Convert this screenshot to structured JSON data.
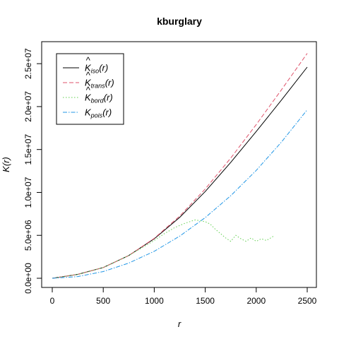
{
  "chart_data": {
    "type": "line",
    "title": "kburglary",
    "xlabel": "r",
    "ylabel": "K(r)",
    "xlim": [
      0,
      2500
    ],
    "ylim": [
      0,
      26000000
    ],
    "x_ticks": [
      0,
      500,
      1000,
      1500,
      2000,
      2500
    ],
    "x_tick_labels": [
      "0",
      "500",
      "1000",
      "1500",
      "2000",
      "2500"
    ],
    "y_ticks": [
      0,
      5000000,
      10000000,
      15000000,
      20000000,
      25000000
    ],
    "y_tick_labels": [
      "0.0e+00",
      "5.0e+06",
      "1.0e+07",
      "1.5e+07",
      "2.0e+07",
      "2.5e+07"
    ],
    "grid": false,
    "legend_position": "top-left",
    "series": [
      {
        "name": "iso",
        "legend_base": "K",
        "legend_sub": "iso",
        "legend_hat": true,
        "color": "#000000",
        "dash": "",
        "x": [
          0,
          250,
          500,
          750,
          1000,
          1250,
          1500,
          1750,
          2000,
          2250,
          2500
        ],
        "y": [
          0,
          450000,
          1250000,
          2650000,
          4600000,
          7100000,
          10100000,
          13500000,
          17100000,
          20800000,
          24600000
        ]
      },
      {
        "name": "trans",
        "legend_base": "K",
        "legend_sub": "trans",
        "legend_hat": true,
        "color": "#df536b",
        "dash": "6,3",
        "x": [
          0,
          250,
          500,
          750,
          1000,
          1250,
          1500,
          1750,
          2000,
          2250,
          2500
        ],
        "y": [
          0,
          450000,
          1250000,
          2650000,
          4650000,
          7250000,
          10400000,
          14000000,
          17900000,
          22000000,
          26200000
        ]
      },
      {
        "name": "bord",
        "legend_base": "K",
        "legend_sub": "bord",
        "legend_hat": true,
        "color": "#61d04f",
        "dash": "1.5,2.5",
        "x": [
          0,
          250,
          500,
          750,
          1000,
          1100,
          1200,
          1300,
          1400,
          1450,
          1500,
          1550,
          1600,
          1650,
          1700,
          1750,
          1800,
          1850,
          1900,
          1950,
          2000,
          2050,
          2100,
          2170
        ],
        "y": [
          0,
          450000,
          1250000,
          2650000,
          4400000,
          5200000,
          5900000,
          6400000,
          6800000,
          6700000,
          6600000,
          6300000,
          5700000,
          5200000,
          4700000,
          4300000,
          5000000,
          4600000,
          4300000,
          4700000,
          4300000,
          4600000,
          4400000,
          4900000
        ]
      },
      {
        "name": "pois",
        "legend_base": "K",
        "legend_sub": "pois",
        "legend_hat": false,
        "color": "#2297e6",
        "dash": "6,2,1.5,2",
        "x": [
          0,
          250,
          500,
          750,
          1000,
          1250,
          1500,
          1750,
          2000,
          2250,
          2500
        ],
        "y": [
          0,
          196350,
          785398,
          1767146,
          3141593,
          4908739,
          7068583,
          9621128,
          12566371,
          15904313,
          19634954
        ]
      }
    ]
  }
}
